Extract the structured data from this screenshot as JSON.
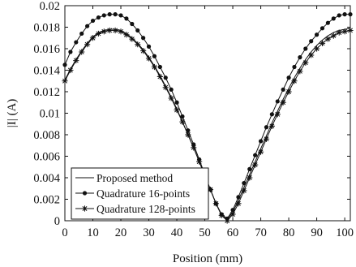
{
  "chart_data": {
    "type": "line",
    "xlabel": "Position (mm)",
    "ylabel": "|I| (A)",
    "xlim": [
      0,
      102
    ],
    "ylim": [
      0,
      0.02
    ],
    "xticks": [
      0,
      10,
      20,
      30,
      40,
      50,
      60,
      70,
      80,
      90,
      100
    ],
    "xtick_labels": [
      "0",
      "10",
      "20",
      "30",
      "40",
      "50",
      "60",
      "70",
      "80",
      "90",
      "100"
    ],
    "yticks": [
      0,
      0.002,
      0.004,
      0.006,
      0.008,
      0.01,
      0.012,
      0.014,
      0.016,
      0.018,
      0.02
    ],
    "ytick_labels": [
      "0",
      "0.002",
      "0.004",
      "0.006",
      "0.008",
      "0.01",
      "0.012",
      "0.014",
      "0.016",
      "0.018",
      "0.02"
    ],
    "grid": false,
    "legend_position": "bottom-left",
    "series": [
      {
        "name": "Proposed method",
        "marker": "none",
        "color": "#111111",
        "x": [
          0,
          2,
          4,
          6,
          8,
          10,
          12,
          14,
          16,
          18,
          20,
          22,
          24,
          26,
          28,
          30,
          32,
          34,
          36,
          38,
          40,
          42,
          44,
          46,
          48,
          50,
          52,
          54,
          56,
          58,
          60,
          62,
          64,
          66,
          68,
          70,
          72,
          74,
          76,
          78,
          80,
          82,
          84,
          86,
          88,
          90,
          92,
          94,
          96,
          98,
          100,
          102
        ],
        "y": [
          0.0131,
          0.0141,
          0.015,
          0.0158,
          0.0165,
          0.0171,
          0.0175,
          0.0177,
          0.0178,
          0.0178,
          0.0177,
          0.0174,
          0.017,
          0.0165,
          0.0159,
          0.0152,
          0.0144,
          0.0135,
          0.0125,
          0.0115,
          0.0104,
          0.0092,
          0.008,
          0.0068,
          0.0055,
          0.0042,
          0.0029,
          0.0016,
          0.0005,
          0.0001,
          0.0008,
          0.0019,
          0.0031,
          0.0043,
          0.0055,
          0.0067,
          0.0079,
          0.0091,
          0.0102,
          0.0113,
          0.0123,
          0.0133,
          0.0142,
          0.015,
          0.0157,
          0.0163,
          0.0168,
          0.0172,
          0.0175,
          0.0177,
          0.0178,
          0.0179
        ]
      },
      {
        "name": "Quadrature 16-points",
        "marker": "circle",
        "color": "#111111",
        "x": [
          0,
          2,
          4,
          6,
          8,
          10,
          12,
          14,
          16,
          18,
          20,
          22,
          24,
          26,
          28,
          30,
          32,
          34,
          36,
          38,
          40,
          42,
          44,
          46,
          48,
          50,
          52,
          54,
          56,
          58,
          60,
          62,
          64,
          66,
          68,
          70,
          72,
          74,
          76,
          78,
          80,
          82,
          84,
          86,
          88,
          90,
          92,
          94,
          96,
          98,
          100,
          102
        ],
        "y": [
          0.0145,
          0.0157,
          0.0166,
          0.0174,
          0.0181,
          0.0186,
          0.0189,
          0.0191,
          0.0192,
          0.0192,
          0.0191,
          0.0188,
          0.0183,
          0.0177,
          0.017,
          0.0162,
          0.0153,
          0.0143,
          0.0133,
          0.0122,
          0.011,
          0.0097,
          0.0084,
          0.0071,
          0.0057,
          0.0043,
          0.0029,
          0.0016,
          0.0006,
          0.0002,
          0.001,
          0.0022,
          0.0035,
          0.0048,
          0.0061,
          0.0074,
          0.0087,
          0.0099,
          0.0111,
          0.0122,
          0.0133,
          0.0143,
          0.0152,
          0.016,
          0.0167,
          0.0173,
          0.0179,
          0.0184,
          0.0188,
          0.0191,
          0.0192,
          0.0192
        ]
      },
      {
        "name": "Quadrature 128-points",
        "marker": "star",
        "color": "#111111",
        "x": [
          0,
          2,
          4,
          6,
          8,
          10,
          12,
          14,
          16,
          18,
          20,
          22,
          24,
          26,
          28,
          30,
          32,
          34,
          36,
          38,
          40,
          42,
          44,
          46,
          48,
          50,
          52,
          54,
          56,
          58,
          60,
          62,
          64,
          66,
          68,
          70,
          72,
          74,
          76,
          78,
          80,
          82,
          84,
          86,
          88,
          90,
          92,
          94,
          96,
          98,
          100,
          102
        ],
        "y": [
          0.013,
          0.014,
          0.0149,
          0.0157,
          0.0164,
          0.017,
          0.0174,
          0.0176,
          0.0177,
          0.0177,
          0.0176,
          0.0173,
          0.0169,
          0.0164,
          0.0158,
          0.0151,
          0.0143,
          0.0134,
          0.0124,
          0.0114,
          0.0103,
          0.0092,
          0.008,
          0.0068,
          0.0055,
          0.0042,
          0.0029,
          0.0016,
          0.0005,
          0.0,
          0.0006,
          0.0016,
          0.0028,
          0.004,
          0.0052,
          0.0064,
          0.0076,
          0.0088,
          0.0099,
          0.011,
          0.012,
          0.013,
          0.0139,
          0.0147,
          0.0154,
          0.016,
          0.0165,
          0.0169,
          0.0172,
          0.0175,
          0.0176,
          0.0177
        ]
      }
    ]
  }
}
